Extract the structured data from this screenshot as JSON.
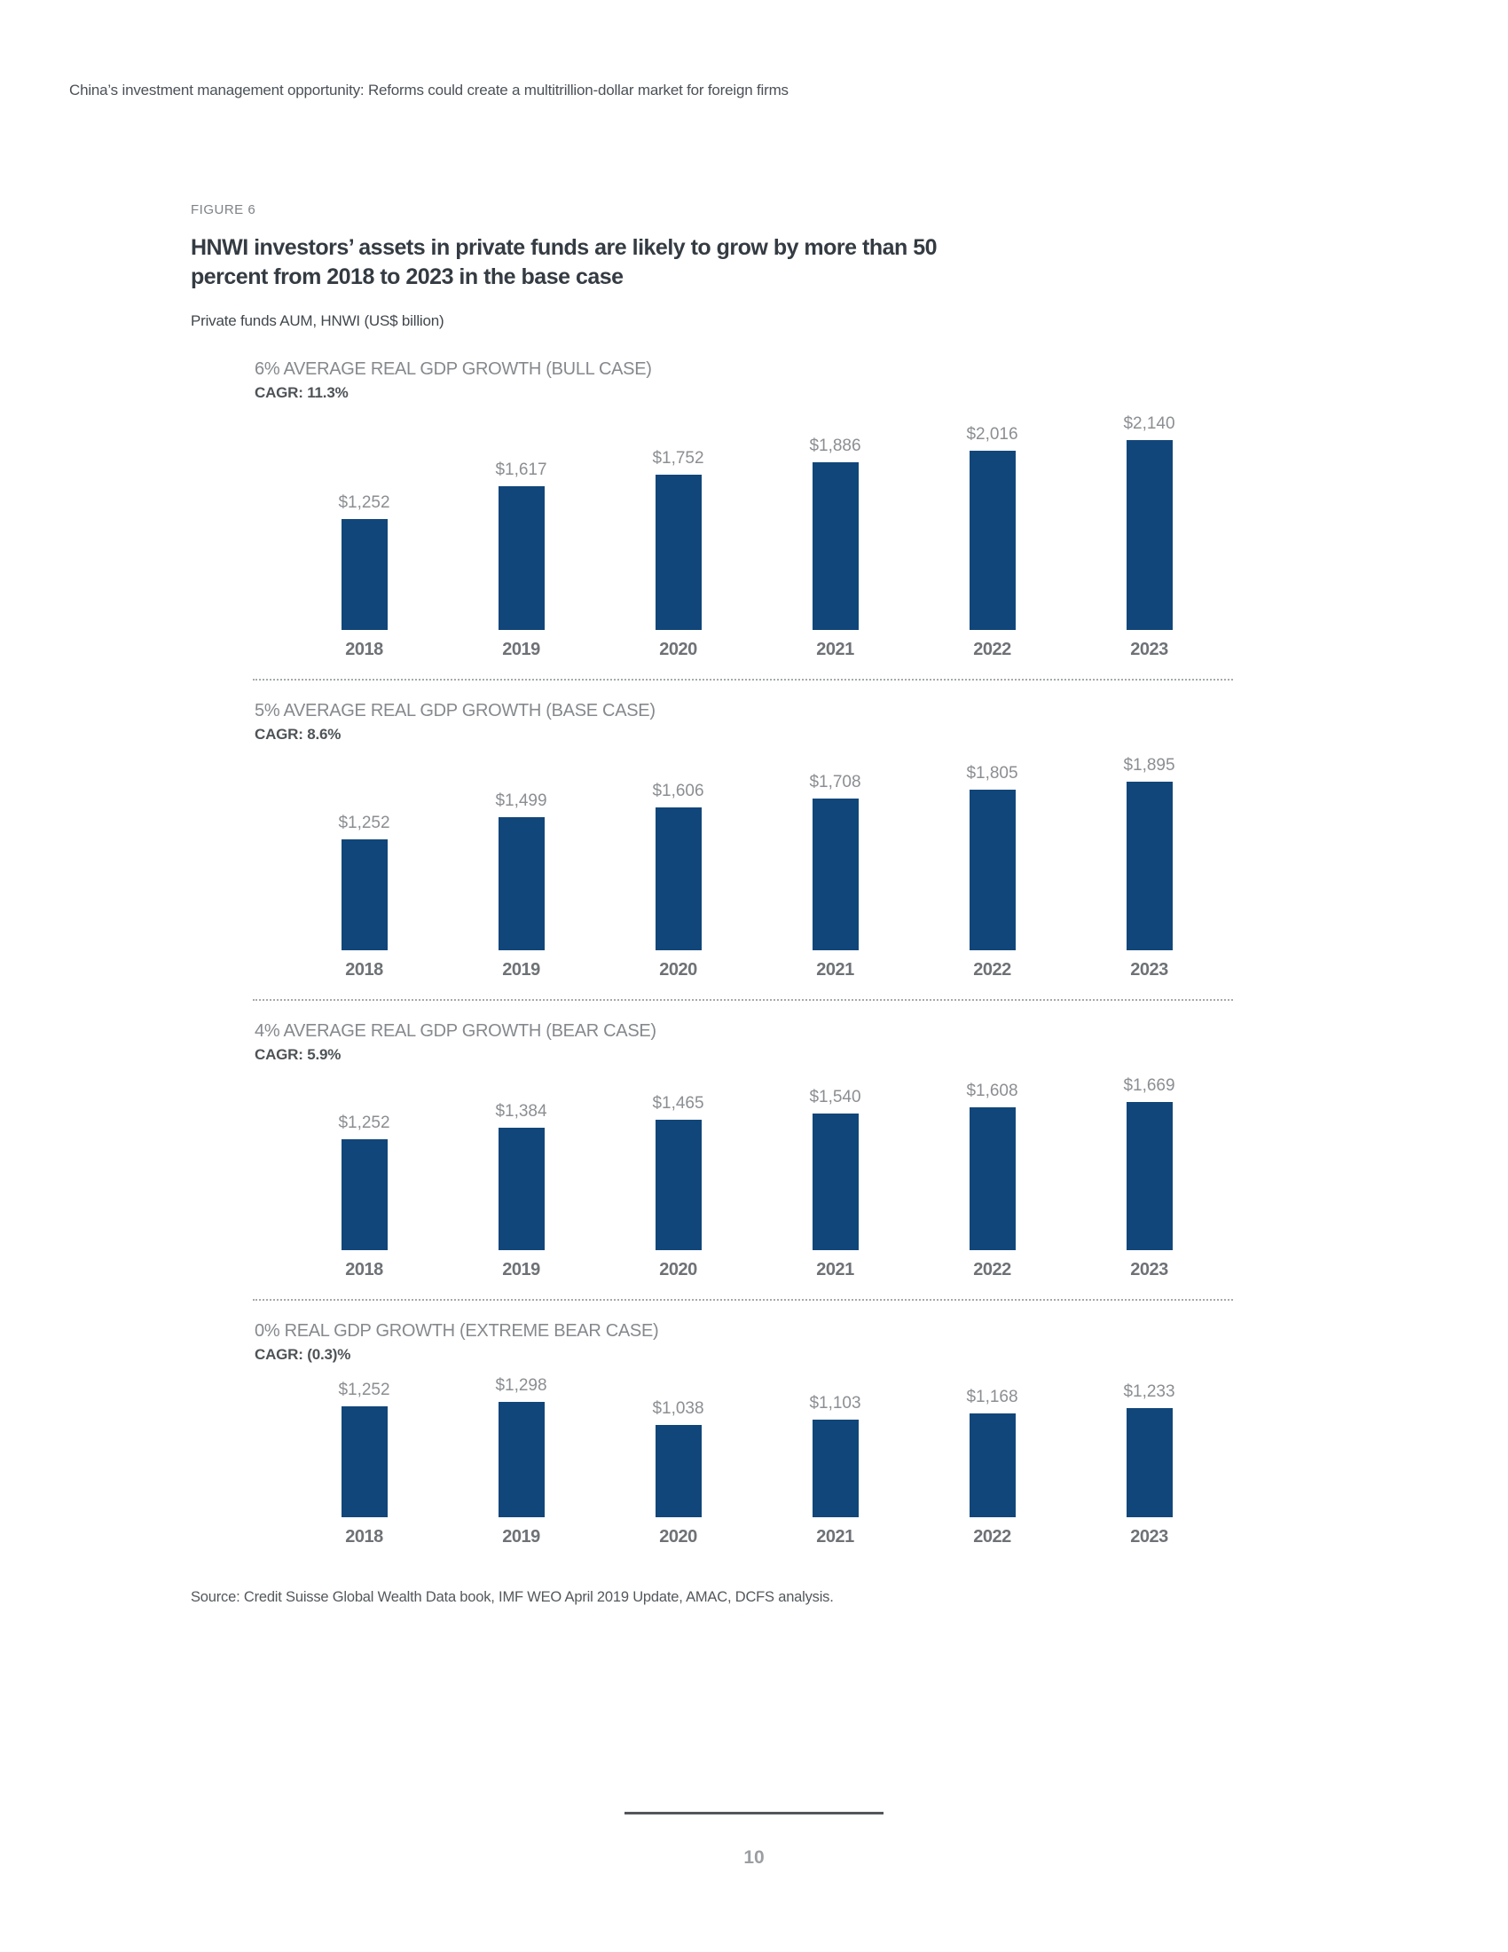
{
  "page": {
    "header": "China’s investment management opportunity: Reforms could create a multitrillion-dollar market for foreign firms",
    "figure_label": "FIGURE 6",
    "title": "HNWI investors’ assets in private funds are likely to grow by more than 50 percent from 2018 to 2023 in the base case",
    "title_lines": [
      "HNWI investors’ assets in private funds are likely to grow by more than 50",
      "percent from 2018 to 2023 in the base case"
    ],
    "subtitle": "Private funds AUM, HNWI (US$ billion)",
    "source": "Source: Credit Suisse Global Wealth Data book, IMF WEO April 2019 Update, AMAC, DCFS analysis.",
    "page_number": "10"
  },
  "colors": {
    "bar": "#11467A",
    "value_label": "#8b8e92",
    "panel_header": "#85898d",
    "year_label": "#6e7276",
    "title": "#343b42"
  },
  "chart_data": [
    {
      "type": "bar",
      "title": "6% AVERAGE REAL GDP GROWTH (BULL CASE)",
      "cagr_label": "CAGR: 11.3%",
      "categories": [
        "2018",
        "2019",
        "2020",
        "2021",
        "2022",
        "2023"
      ],
      "values": [
        1252,
        1617,
        1752,
        1886,
        2016,
        2140
      ],
      "data_labels": [
        "$1,252",
        "$1,617",
        "$1,752",
        "$1,886",
        "$2,016",
        "$2,140"
      ],
      "unit": "US$ billion",
      "xlabel": "",
      "ylabel": "",
      "grid": false,
      "legend": false,
      "axes_hidden": true
    },
    {
      "type": "bar",
      "title": "5% AVERAGE REAL GDP GROWTH (BASE CASE)",
      "cagr_label": "CAGR: 8.6%",
      "categories": [
        "2018",
        "2019",
        "2020",
        "2021",
        "2022",
        "2023"
      ],
      "values": [
        1252,
        1499,
        1606,
        1708,
        1805,
        1895
      ],
      "data_labels": [
        "$1,252",
        "$1,499",
        "$1,606",
        "$1,708",
        "$1,805",
        "$1,895"
      ],
      "unit": "US$ billion",
      "xlabel": "",
      "ylabel": "",
      "grid": false,
      "legend": false,
      "axes_hidden": true
    },
    {
      "type": "bar",
      "title": "4% AVERAGE REAL GDP GROWTH (BEAR CASE)",
      "cagr_label": "CAGR: 5.9%",
      "categories": [
        "2018",
        "2019",
        "2020",
        "2021",
        "2022",
        "2023"
      ],
      "values": [
        1252,
        1384,
        1465,
        1540,
        1608,
        1669
      ],
      "data_labels": [
        "$1,252",
        "$1,384",
        "$1,465",
        "$1,540",
        "$1,608",
        "$1,669"
      ],
      "unit": "US$ billion",
      "xlabel": "",
      "ylabel": "",
      "grid": false,
      "legend": false,
      "axes_hidden": true
    },
    {
      "type": "bar",
      "title": "0% REAL GDP GROWTH (EXTREME BEAR CASE)",
      "cagr_label": "CAGR: (0.3)%",
      "categories": [
        "2018",
        "2019",
        "2020",
        "2021",
        "2022",
        "2023"
      ],
      "values": [
        1252,
        1298,
        1038,
        1103,
        1168,
        1233
      ],
      "data_labels": [
        "$1,252",
        "$1,298",
        "$1,038",
        "$1,103",
        "$1,168",
        "$1,233"
      ],
      "unit": "US$ billion",
      "xlabel": "",
      "ylabel": "",
      "grid": false,
      "legend": false,
      "axes_hidden": true
    }
  ]
}
